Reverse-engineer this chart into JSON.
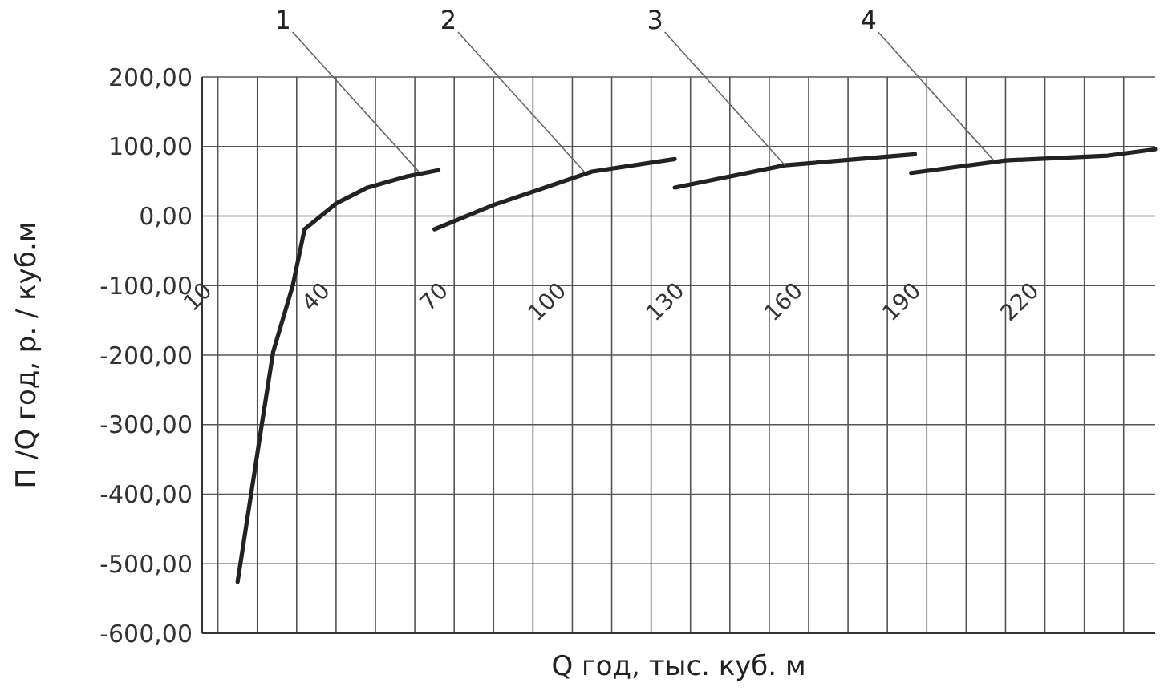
{
  "chart_data": {
    "type": "line",
    "xlabel": "Q год, тыс. куб. м",
    "ylabel": "П /Q год, р. / куб.м",
    "xlim": [
      6,
      248
    ],
    "xticks": [
      10,
      {
        "value": 20,
        "label": null
      },
      {
        "value": 30,
        "label": null
      },
      40,
      {
        "value": 50,
        "label": null
      },
      {
        "value": 60,
        "label": null
      },
      70,
      {
        "value": 80,
        "label": null
      },
      {
        "value": 90,
        "label": null
      },
      100,
      {
        "value": 110,
        "label": null
      },
      {
        "value": 120,
        "label": null
      },
      130,
      {
        "value": 140,
        "label": null
      },
      {
        "value": 150,
        "label": null
      },
      160,
      {
        "value": 170,
        "label": null
      },
      {
        "value": 180,
        "label": null
      },
      190,
      {
        "value": 200,
        "label": null
      },
      {
        "value": 210,
        "label": null
      },
      220,
      {
        "value": 230,
        "label": null
      },
      {
        "value": 240,
        "label": null
      }
    ],
    "ylim": [
      -600,
      200
    ],
    "yticks": [
      {
        "value": -600,
        "label": "-600,00"
      },
      {
        "value": -500,
        "label": "-500,00"
      },
      {
        "value": -400,
        "label": "-400,00"
      },
      {
        "value": -300,
        "label": "-300,00"
      },
      {
        "value": -200,
        "label": "-200,00"
      },
      {
        "value": -100,
        "label": "-100,00"
      },
      {
        "value": 0,
        "label": "0,00"
      },
      {
        "value": 100,
        "label": "100,00"
      },
      {
        "value": 200,
        "label": "200,00"
      }
    ],
    "grid": true,
    "line_style": "solid",
    "series": [
      {
        "color": "#222222",
        "x": [
          15,
          21,
          24,
          29,
          32,
          40,
          48,
          58,
          66
        ],
        "values": [
          -526,
          -305,
          -196,
          -100,
          -19,
          18,
          41,
          57,
          66
        ]
      },
      {
        "color": "#222222",
        "x": [
          65,
          80,
          92,
          105,
          126
        ],
        "values": [
          -19,
          16,
          39,
          64,
          82
        ]
      },
      {
        "color": "#222222",
        "x": [
          126,
          154,
          187
        ],
        "values": [
          41,
          73,
          89
        ]
      },
      {
        "color": "#222222",
        "x": [
          186,
          210,
          236,
          248
        ],
        "values": [
          62,
          80,
          87,
          96
        ]
      }
    ],
    "annotations": [
      {
        "text": "1",
        "x": 61,
        "y": 64
      },
      {
        "text": "2",
        "x": 103,
        "y": 64
      },
      {
        "text": "3",
        "x": 154,
        "y": 73
      },
      {
        "text": "4",
        "x": 207,
        "y": 80
      }
    ]
  }
}
